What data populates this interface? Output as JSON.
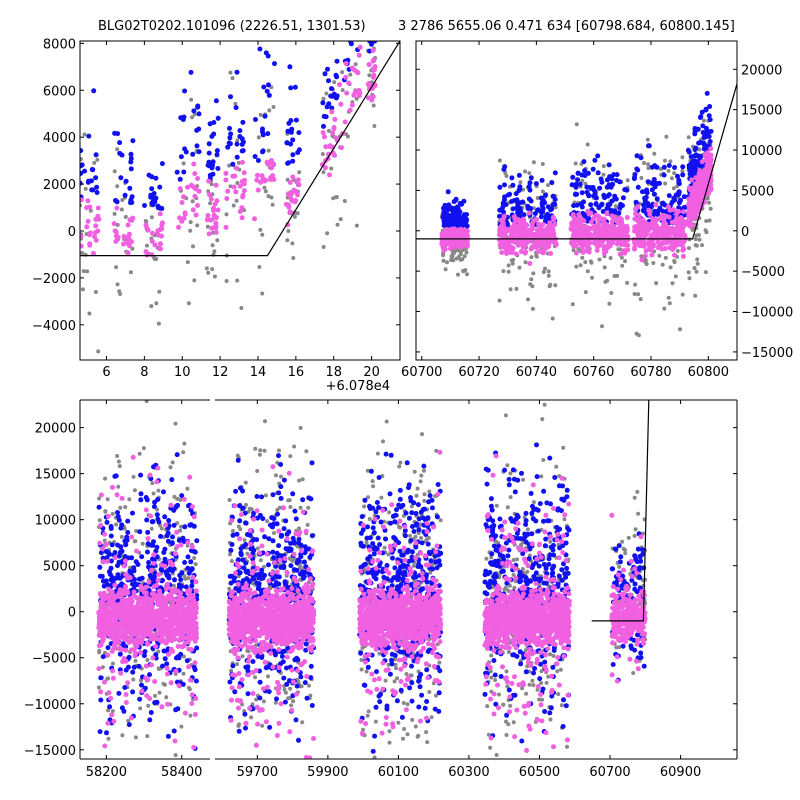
{
  "title": {
    "left": "BLG02T0202.101096 (2226.51, 1301.53)",
    "right": "3 2786 5655.06 0.471 634 [60798.684, 60800.145]"
  },
  "colors": {
    "gray": "#888888",
    "blue": "#1010f0",
    "pink": "#f060e0",
    "model": "#000000"
  },
  "chart_data": [
    {
      "id": "zoom",
      "type": "scatter",
      "xlim": [
        4.6,
        21.5
      ],
      "ylim": [
        -5500,
        8100
      ],
      "x_offset_label": "+6.078e4",
      "xticks": [
        6,
        8,
        10,
        12,
        14,
        16,
        18,
        20
      ],
      "yticks": [
        -4000,
        -2000,
        0,
        2000,
        4000,
        6000,
        8000
      ],
      "ytick_labels": [
        "−4000",
        "−2000",
        "0",
        "2000",
        "4000",
        "6000",
        "8000"
      ],
      "yaxis_side": "left",
      "model_line": {
        "x": [
          4.6,
          14.5,
          21.5
        ],
        "y": [
          -1050,
          -1050,
          8100
        ]
      },
      "clusters": [
        {
          "x": [
            4.6,
            5.6
          ],
          "base": 200,
          "spread": 1800,
          "rise": 0
        },
        {
          "x": [
            6.4,
            7.4
          ],
          "base": 0,
          "spread": 1500,
          "rise": 0
        },
        {
          "x": [
            8.0,
            9.0
          ],
          "base": -300,
          "spread": 1400,
          "rise": 0
        },
        {
          "x": [
            9.7,
            10.9
          ],
          "base": 600,
          "spread": 1800,
          "rise": 1500
        },
        {
          "x": [
            11.3,
            11.9
          ],
          "base": 900,
          "spread": 1500,
          "rise": 0
        },
        {
          "x": [
            12.3,
            13.3
          ],
          "base": 1200,
          "spread": 1800,
          "rise": 1000
        },
        {
          "x": [
            13.8,
            14.9
          ],
          "base": 1500,
          "spread": 1900,
          "rise": 1500
        },
        {
          "x": [
            15.5,
            16.2
          ],
          "base": 1200,
          "spread": 1500,
          "rise": 800
        },
        {
          "x": [
            17.4,
            18.2
          ],
          "base": 3000,
          "spread": 1800,
          "rise": 1500
        },
        {
          "x": [
            18.3,
            19.4
          ],
          "base": 4800,
          "spread": 2200,
          "rise": 1800
        },
        {
          "x": [
            19.8,
            20.2
          ],
          "base": 6300,
          "spread": 1200,
          "rise": 500
        }
      ]
    },
    {
      "id": "recent",
      "type": "scatter",
      "xlim": [
        60698,
        60810
      ],
      "ylim": [
        -16000,
        23500
      ],
      "xticks": [
        60700,
        60720,
        60740,
        60760,
        60780,
        60800
      ],
      "yticks": [
        -15000,
        -10000,
        -5000,
        0,
        5000,
        10000,
        15000,
        20000
      ],
      "ytick_labels": [
        "−15000",
        "−10000",
        "−5000",
        "0",
        "5000",
        "10000",
        "15000",
        "20000"
      ],
      "yaxis_side": "right",
      "model_line": {
        "x": [
          60698,
          60794.5,
          60810
        ],
        "y": [
          -1000,
          -1000,
          18200
        ]
      },
      "clusters": [
        {
          "x": [
            60707,
            60716
          ],
          "base": -900,
          "spread": 1500,
          "rise": 0
        },
        {
          "x": [
            60727,
            60747
          ],
          "base": -700,
          "spread": 3000,
          "rise": 0
        },
        {
          "x": [
            60752,
            60772
          ],
          "base": -300,
          "spread": 3500,
          "rise": 0
        },
        {
          "x": [
            60774,
            60792
          ],
          "base": -200,
          "spread": 3800,
          "rise": 0
        },
        {
          "x": [
            60793,
            60801
          ],
          "base": 2500,
          "spread": 3500,
          "rise": 5000
        }
      ]
    },
    {
      "id": "full",
      "type": "scatter",
      "xlim": [
        58130,
        61060
      ],
      "ylim": [
        -16000,
        23000
      ],
      "segments": [
        {
          "xlim": [
            58130,
            58475
          ],
          "xticks": [
            58200,
            58400
          ],
          "px": [
            80,
            210
          ]
        },
        {
          "xlim": [
            59580,
            61060
          ],
          "xticks": [
            59700,
            59900,
            60100,
            60300,
            60500,
            60700,
            60900
          ],
          "px": [
            215,
            737
          ]
        }
      ],
      "yticks": [
        -15000,
        -10000,
        -5000,
        0,
        5000,
        10000,
        15000,
        20000
      ],
      "ytick_labels": [
        "−15000",
        "−10000",
        "−5000",
        "0",
        "5000",
        "10000",
        "15000",
        "20000"
      ],
      "yaxis_side": "left",
      "model_line": {
        "x": [
          60648,
          60794.5,
          60810
        ],
        "y": [
          -1000,
          -1000,
          23000
        ]
      },
      "seasons": [
        {
          "x": [
            58180,
            58440
          ],
          "base": -800,
          "spread": 6000
        },
        {
          "x": [
            59620,
            59860
          ],
          "base": -800,
          "spread": 6000
        },
        {
          "x": [
            59990,
            60220
          ],
          "base": -800,
          "spread": 6000
        },
        {
          "x": [
            60345,
            60585
          ],
          "base": -800,
          "spread": 6000
        },
        {
          "x": [
            60705,
            60800
          ],
          "base": -500,
          "spread": 3500
        }
      ]
    }
  ]
}
